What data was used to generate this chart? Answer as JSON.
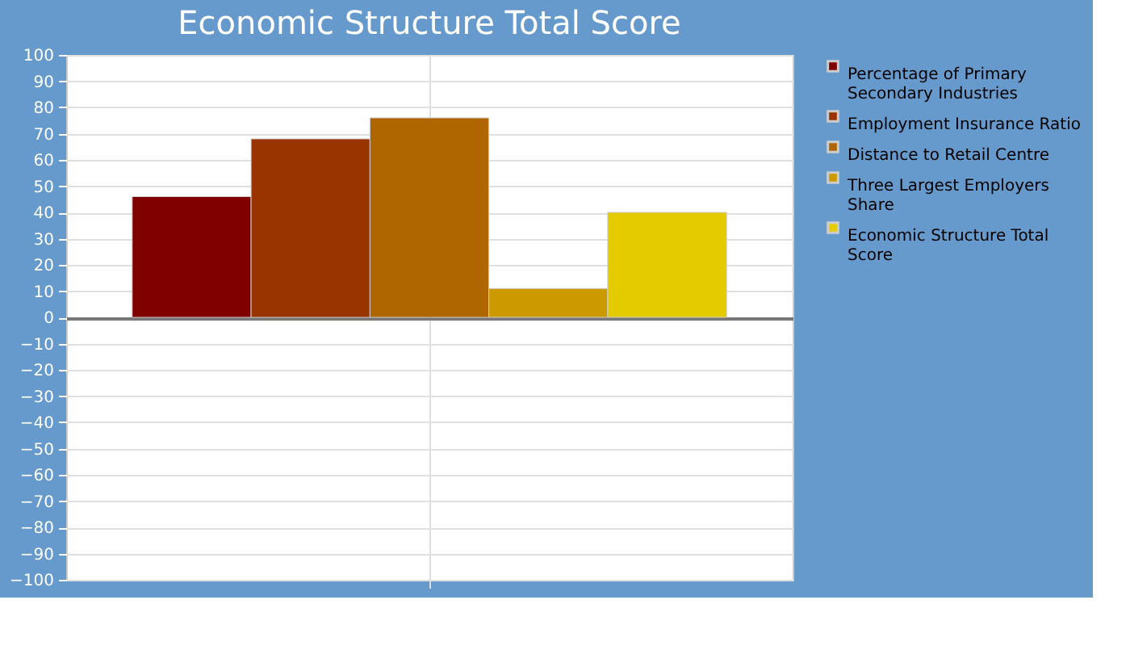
{
  "chart_data": {
    "type": "bar",
    "title": "Economic Structure Total Score",
    "categories": [
      null
    ],
    "series": [
      {
        "name": "Percentage of Primary Secondary Industries",
        "color": "#800000",
        "values": [
          46
        ]
      },
      {
        "name": "Employment Insurance Ratio",
        "color": "#993300",
        "values": [
          68
        ]
      },
      {
        "name": "Distance to Retail Centre",
        "color": "#b06600",
        "values": [
          76
        ]
      },
      {
        "name": "Three Largest Employers Share",
        "color": "#cc9900",
        "values": [
          11
        ]
      },
      {
        "name": "Economic Structure Total Score",
        "color": "#e3cb00",
        "values": [
          40
        ]
      }
    ],
    "ylim": [
      -100,
      100
    ],
    "yticks": [
      -100,
      -90,
      -80,
      -70,
      -60,
      -50,
      -40,
      -30,
      -20,
      -10,
      0,
      10,
      20,
      30,
      40,
      50,
      60,
      70,
      80,
      90,
      100
    ],
    "grid": true,
    "legend": "right"
  }
}
